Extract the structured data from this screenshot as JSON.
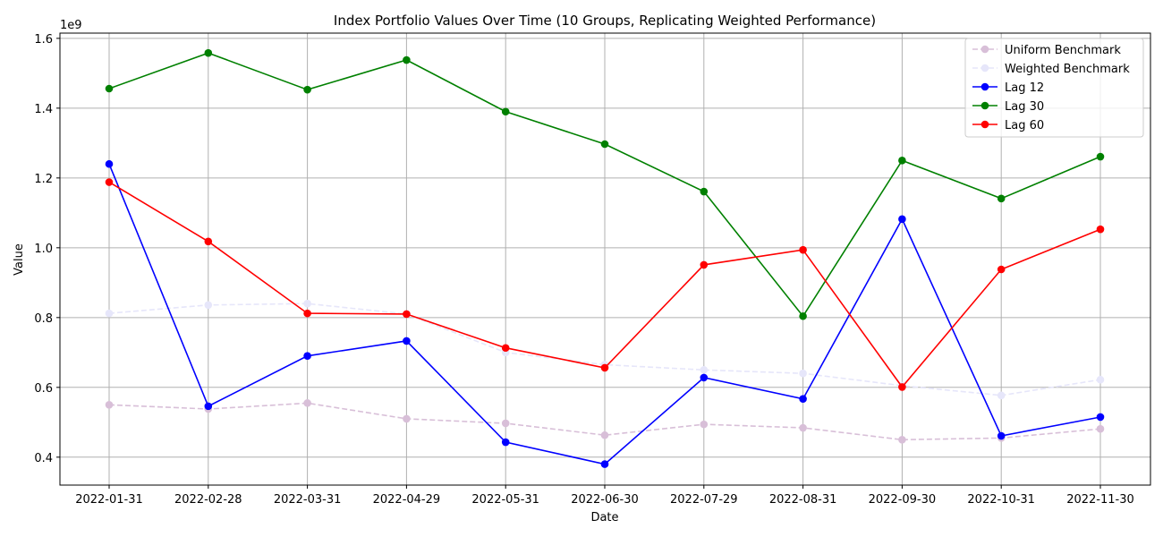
{
  "chart_data": {
    "type": "line",
    "title": "Index Portfolio Values Over Time (10 Groups, Replicating Weighted Performance)",
    "xlabel": "Date",
    "ylabel": "Value",
    "y_offset_label": "1e9",
    "x": [
      "2022-01-31",
      "2022-02-28",
      "2022-03-31",
      "2022-04-29",
      "2022-05-31",
      "2022-06-30",
      "2022-07-29",
      "2022-08-31",
      "2022-09-30",
      "2022-10-31",
      "2022-11-30"
    ],
    "ylim": [
      0.32,
      1.615
    ],
    "yticks": [
      0.4,
      0.6,
      0.8,
      1.0,
      1.2,
      1.4,
      1.6
    ],
    "ytick_labels": [
      "0.4",
      "0.6",
      "0.8",
      "1.0",
      "1.2",
      "1.4",
      "1.6"
    ],
    "grid": true,
    "legend_position": "top-right",
    "series": [
      {
        "name": "Uniform Benchmark",
        "color": "#d8bfd8",
        "style": "dashed",
        "values": [
          0.55,
          0.538,
          0.555,
          0.51,
          0.497,
          0.463,
          0.494,
          0.484,
          0.45,
          0.455,
          0.481
        ]
      },
      {
        "name": "Weighted Benchmark",
        "color": "#e6e6fa",
        "style": "dashed",
        "values": [
          0.812,
          0.836,
          0.84,
          0.81,
          0.7,
          0.665,
          0.65,
          0.64,
          0.605,
          0.577,
          0.622
        ]
      },
      {
        "name": "Lag 12",
        "color": "#0000ff",
        "style": "solid",
        "values": [
          1.24,
          0.546,
          0.69,
          0.733,
          0.443,
          0.38,
          0.628,
          0.567,
          1.082,
          0.461,
          0.515
        ]
      },
      {
        "name": "Lag 30",
        "color": "#008000",
        "style": "solid",
        "values": [
          1.456,
          1.558,
          1.453,
          1.538,
          1.39,
          1.297,
          1.161,
          0.804,
          1.25,
          1.141,
          1.261
        ]
      },
      {
        "name": "Lag 60",
        "color": "#ff0000",
        "style": "solid",
        "values": [
          1.188,
          1.018,
          0.812,
          0.81,
          0.713,
          0.656,
          0.951,
          0.994,
          0.601,
          0.938,
          1.053
        ]
      }
    ]
  }
}
